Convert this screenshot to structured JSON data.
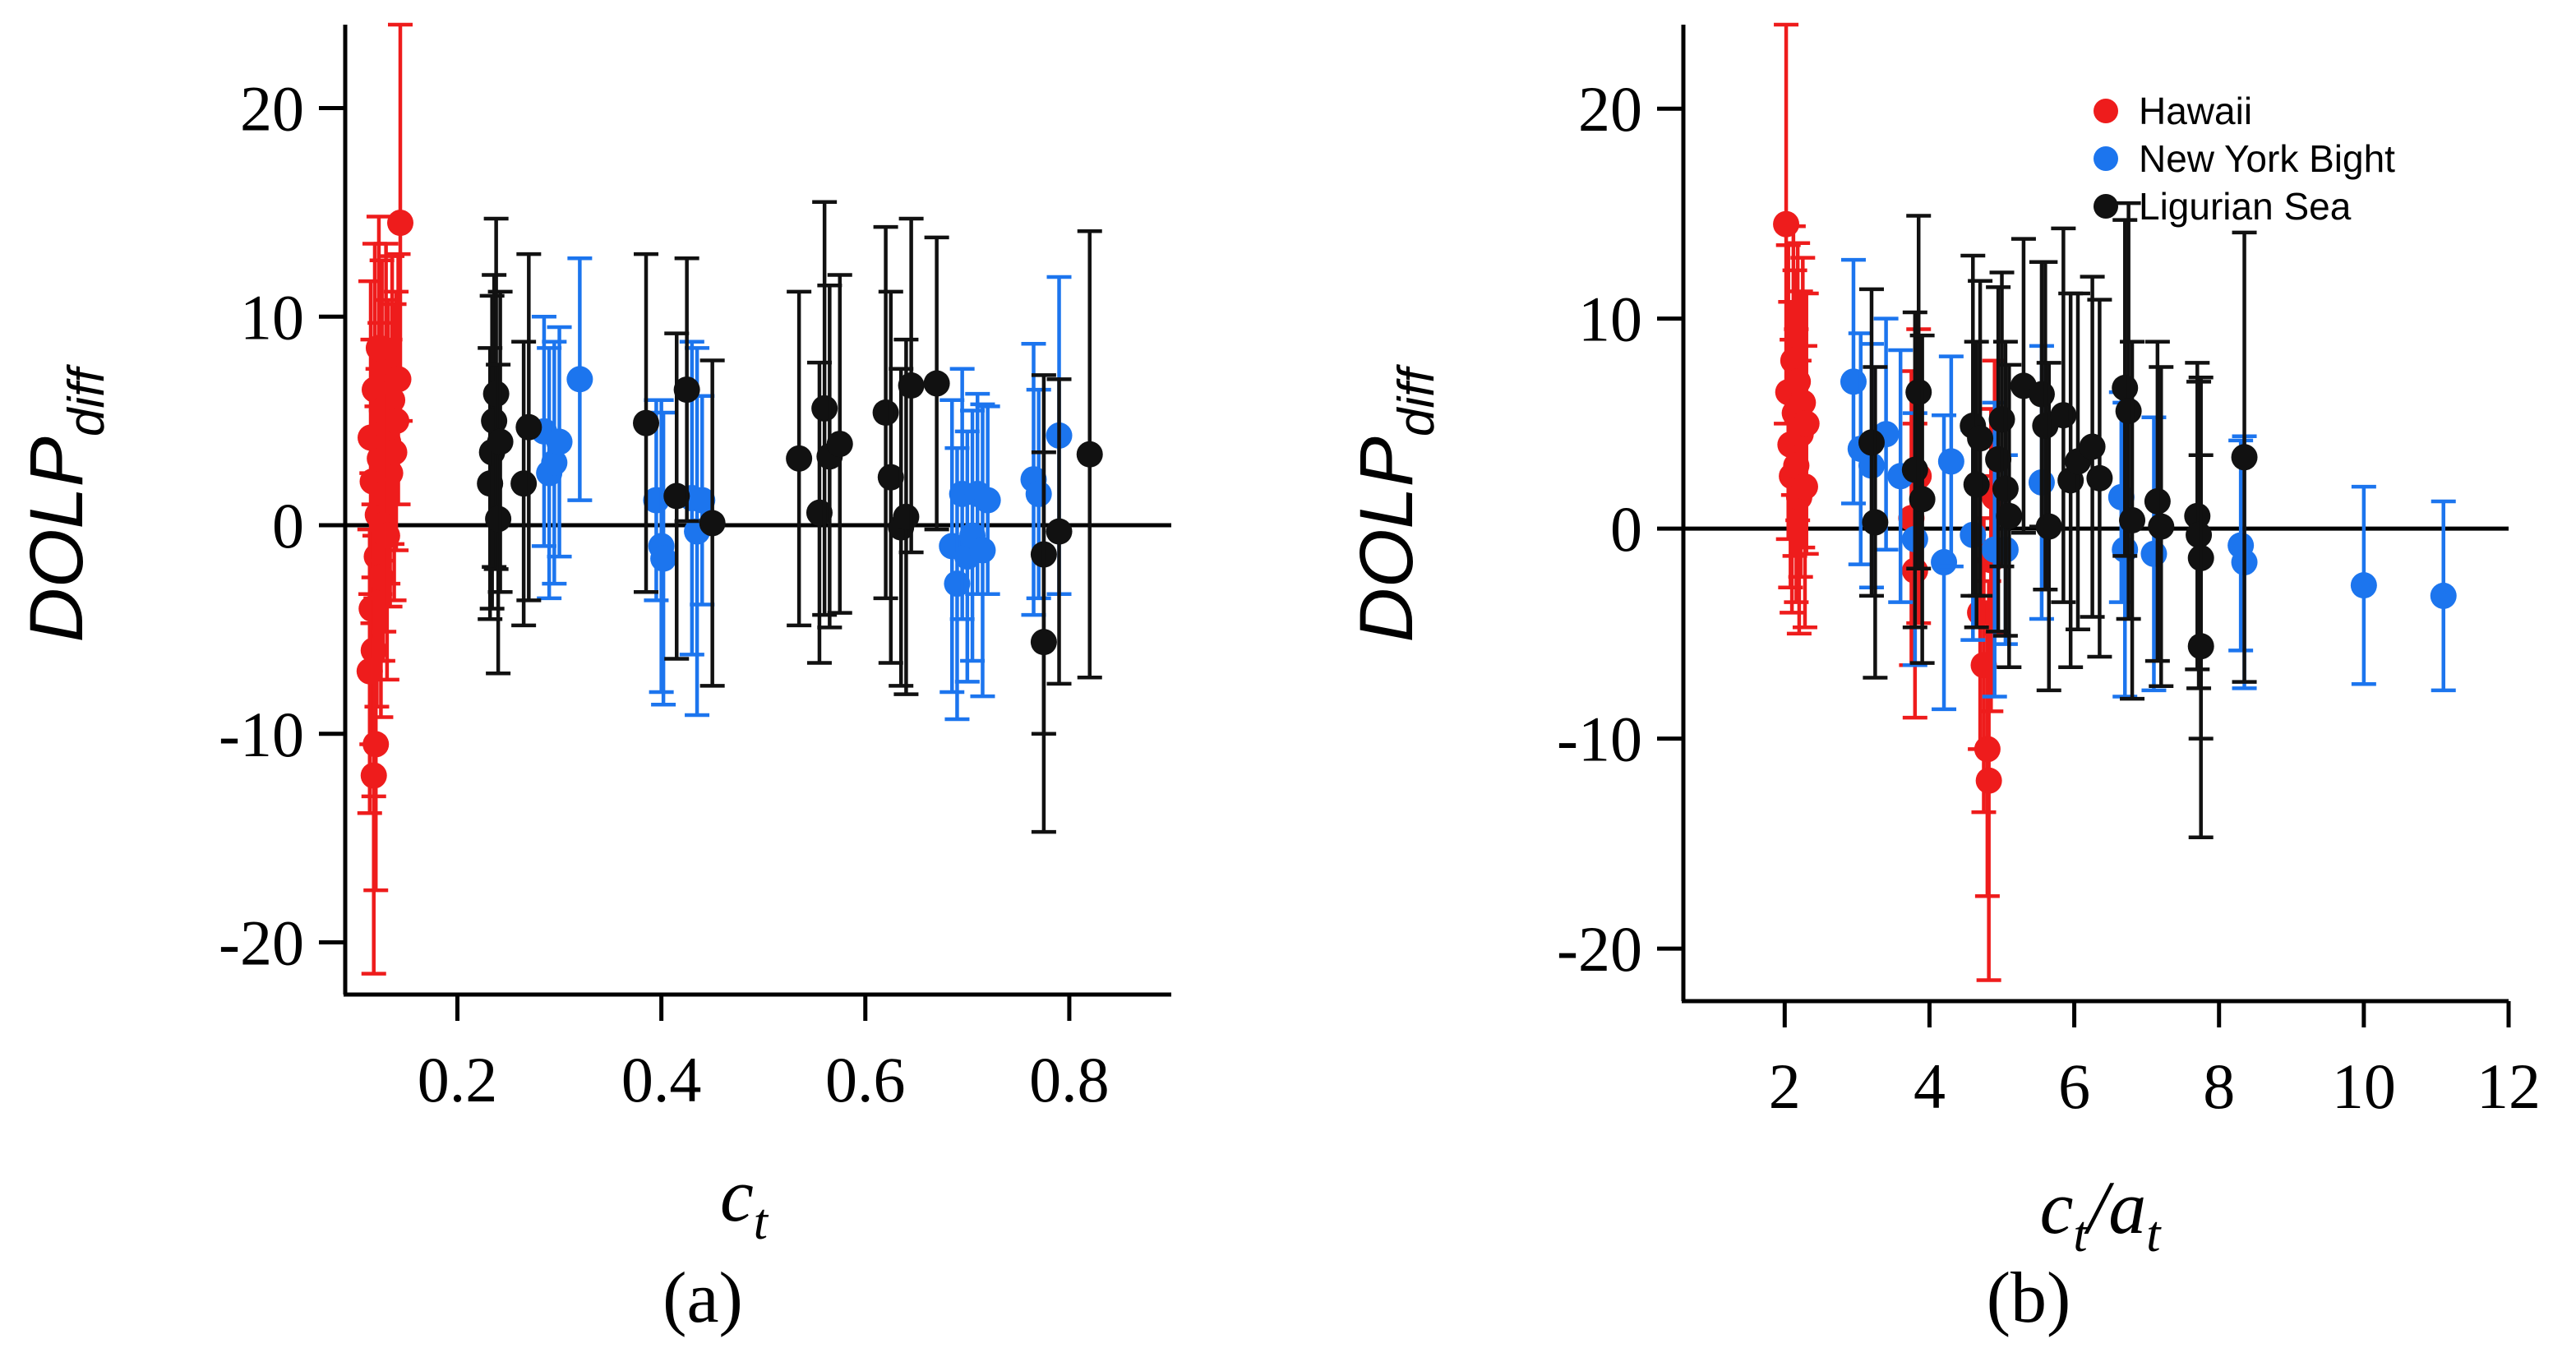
{
  "colors": {
    "hawaii": "#ee1c1c",
    "new_york_bight": "#1c75ee",
    "ligurian_sea": "#111111",
    "axis": "#000000"
  },
  "legend": {
    "entries": [
      {
        "name": "Hawaii",
        "color": "#ee1c1c"
      },
      {
        "name": "New York Bight",
        "color": "#1c75ee"
      },
      {
        "name": "Ligurian Sea",
        "color": "#111111"
      }
    ]
  },
  "chart_data": [
    {
      "id": "a",
      "type": "scatter",
      "caption": "(a)",
      "xlabel": {
        "main": "c",
        "sub": "t"
      },
      "ylabel": {
        "main": "DOLP",
        "sub": "diff"
      },
      "xlim": [
        0.09,
        0.9
      ],
      "ylim": [
        -22.5,
        24
      ],
      "xticks": [
        0.2,
        0.4,
        0.6,
        0.8
      ],
      "xtick_labels": [
        "0.2",
        "0.4",
        "0.6",
        "0.8"
      ],
      "yticks": [
        -20,
        -10,
        0,
        10,
        20
      ],
      "ytick_labels": [
        "-20",
        "-10",
        "0",
        "10",
        "20"
      ],
      "zero_line": true,
      "series": [
        {
          "name": "Hawaii",
          "color": "#ee1c1c",
          "points": [
            {
              "x": 0.115,
              "y": 4.2,
              "err": 7.5
            },
            {
              "x": 0.117,
              "y": 2.1,
              "err": 6.8
            },
            {
              "x": 0.119,
              "y": 6.5,
              "err": 7.0
            },
            {
              "x": 0.121,
              "y": -1.5,
              "err": 7.2
            },
            {
              "x": 0.116,
              "y": -4.0,
              "err": 6.5
            },
            {
              "x": 0.118,
              "y": -6.0,
              "err": 7.0
            },
            {
              "x": 0.114,
              "y": -7.0,
              "err": 6.8
            },
            {
              "x": 0.12,
              "y": -10.5,
              "err": 7.0
            },
            {
              "x": 0.118,
              "y": -12.0,
              "err": 9.5
            },
            {
              "x": 0.122,
              "y": 0.5,
              "err": 7.0
            },
            {
              "x": 0.124,
              "y": 3.2,
              "err": 6.5
            },
            {
              "x": 0.126,
              "y": 5.5,
              "err": 7.2
            },
            {
              "x": 0.128,
              "y": 1.5,
              "err": 6.6
            },
            {
              "x": 0.13,
              "y": 7.5,
              "err": 6.0
            },
            {
              "x": 0.132,
              "y": 4.0,
              "err": 6.8
            },
            {
              "x": 0.134,
              "y": 2.5,
              "err": 6.4
            },
            {
              "x": 0.136,
              "y": 6.0,
              "err": 6.9
            },
            {
              "x": 0.138,
              "y": 3.5,
              "err": 7.1
            },
            {
              "x": 0.14,
              "y": 5.0,
              "err": 6.2
            },
            {
              "x": 0.142,
              "y": 7.0,
              "err": 6.0
            },
            {
              "x": 0.144,
              "y": 14.5,
              "err": 9.5
            },
            {
              "x": 0.125,
              "y": -2.5,
              "err": 6.7
            },
            {
              "x": 0.127,
              "y": 0.0,
              "err": 6.5
            },
            {
              "x": 0.123,
              "y": 8.5,
              "err": 6.3
            },
            {
              "x": 0.131,
              "y": -0.5,
              "err": 6.9
            }
          ]
        },
        {
          "name": "New York Bight",
          "color": "#1c75ee",
          "points": [
            {
              "x": 0.285,
              "y": 4.5,
              "err": 5.5
            },
            {
              "x": 0.29,
              "y": 2.5,
              "err": 6.0
            },
            {
              "x": 0.295,
              "y": 3.0,
              "err": 5.8
            },
            {
              "x": 0.3,
              "y": 4.0,
              "err": 5.5
            },
            {
              "x": 0.32,
              "y": 7.0,
              "err": 5.8
            },
            {
              "x": 0.395,
              "y": 1.2,
              "err": 4.8
            },
            {
              "x": 0.4,
              "y": -1.0,
              "err": 7.0
            },
            {
              "x": 0.402,
              "y": -1.6,
              "err": 7.0
            },
            {
              "x": 0.43,
              "y": 1.3,
              "err": 7.5
            },
            {
              "x": 0.435,
              "y": -0.3,
              "err": 8.8
            },
            {
              "x": 0.44,
              "y": 1.2,
              "err": 5.0
            },
            {
              "x": 0.685,
              "y": -1.0,
              "err": 7.0
            },
            {
              "x": 0.69,
              "y": -2.8,
              "err": 6.5
            },
            {
              "x": 0.695,
              "y": 1.5,
              "err": 6.0
            },
            {
              "x": 0.7,
              "y": -1.5,
              "err": 6.0
            },
            {
              "x": 0.705,
              "y": -0.5,
              "err": 6.0
            },
            {
              "x": 0.71,
              "y": 1.5,
              "err": 4.8
            },
            {
              "x": 0.715,
              "y": -1.2,
              "err": 7.0
            },
            {
              "x": 0.72,
              "y": 1.2,
              "err": 4.5
            },
            {
              "x": 0.765,
              "y": 2.2,
              "err": 6.5
            },
            {
              "x": 0.77,
              "y": 1.5,
              "err": 5.0
            },
            {
              "x": 0.79,
              "y": 4.3,
              "err": 7.6
            }
          ]
        },
        {
          "name": "Ligurian Sea",
          "color": "#111111",
          "points": [
            {
              "x": 0.232,
              "y": 2.0,
              "err": 6.5
            },
            {
              "x": 0.234,
              "y": 3.5,
              "err": 7.5
            },
            {
              "x": 0.236,
              "y": 5.0,
              "err": 7.0
            },
            {
              "x": 0.238,
              "y": 6.3,
              "err": 8.4
            },
            {
              "x": 0.24,
              "y": 0.3,
              "err": 7.4
            },
            {
              "x": 0.242,
              "y": 4.0,
              "err": 7.2
            },
            {
              "x": 0.265,
              "y": 2.0,
              "err": 6.8
            },
            {
              "x": 0.27,
              "y": 4.7,
              "err": 8.3
            },
            {
              "x": 0.385,
              "y": 4.9,
              "err": 8.1
            },
            {
              "x": 0.415,
              "y": 1.4,
              "err": 7.8
            },
            {
              "x": 0.425,
              "y": 6.5,
              "err": 6.3
            },
            {
              "x": 0.45,
              "y": 0.1,
              "err": 7.8
            },
            {
              "x": 0.535,
              "y": 3.2,
              "err": 8.0
            },
            {
              "x": 0.555,
              "y": 0.6,
              "err": 7.2
            },
            {
              "x": 0.56,
              "y": 5.6,
              "err": 9.9
            },
            {
              "x": 0.565,
              "y": 3.3,
              "err": 8.2
            },
            {
              "x": 0.575,
              "y": 3.9,
              "err": 8.1
            },
            {
              "x": 0.62,
              "y": 5.4,
              "err": 8.9
            },
            {
              "x": 0.625,
              "y": 2.3,
              "err": 8.9
            },
            {
              "x": 0.635,
              "y": -0.1,
              "err": 7.6
            },
            {
              "x": 0.64,
              "y": 0.4,
              "err": 8.5
            },
            {
              "x": 0.645,
              "y": 6.7,
              "err": 8.0
            },
            {
              "x": 0.67,
              "y": 6.8,
              "err": 7.0
            },
            {
              "x": 0.775,
              "y": -1.4,
              "err": 8.6
            },
            {
              "x": 0.775,
              "y": -5.6,
              "err": 9.1
            },
            {
              "x": 0.79,
              "y": -0.3,
              "err": 7.3
            },
            {
              "x": 0.82,
              "y": 3.4,
              "err": 10.7
            }
          ]
        }
      ]
    },
    {
      "id": "b",
      "type": "scatter",
      "caption": "(b)",
      "xlabel": {
        "main": "c",
        "sub": "t",
        "sep": "/",
        "main2": "a",
        "sub2": "t"
      },
      "ylabel": {
        "main": "DOLP",
        "sub": "diff"
      },
      "xlim": [
        0.6,
        12
      ],
      "ylim": [
        -22.5,
        24
      ],
      "xticks": [
        2,
        4,
        6,
        8,
        10,
        12
      ],
      "xtick_labels": [
        "2",
        "4",
        "6",
        "8",
        "10",
        "12"
      ],
      "yticks": [
        -20,
        -10,
        0,
        10,
        20
      ],
      "ytick_labels": [
        "-20",
        "-10",
        "0",
        "10",
        "20"
      ],
      "zero_line": true,
      "legend_position": "top-right",
      "series": [
        {
          "name": "Hawaii",
          "color": "#ee1c1c",
          "points": [
            {
              "x": 2.02,
              "y": 14.5,
              "err": 9.5
            },
            {
              "x": 2.05,
              "y": 6.5,
              "err": 7.0
            },
            {
              "x": 2.08,
              "y": 4.0,
              "err": 6.8
            },
            {
              "x": 2.1,
              "y": 2.5,
              "err": 6.5
            },
            {
              "x": 2.12,
              "y": 8.0,
              "err": 6.4
            },
            {
              "x": 2.14,
              "y": 5.5,
              "err": 6.8
            },
            {
              "x": 2.16,
              "y": 3.0,
              "err": 6.5
            },
            {
              "x": 2.18,
              "y": 7.0,
              "err": 6.6
            },
            {
              "x": 2.2,
              "y": 1.5,
              "err": 6.5
            },
            {
              "x": 2.22,
              "y": 4.5,
              "err": 6.8
            },
            {
              "x": 2.25,
              "y": 6.0,
              "err": 6.9
            },
            {
              "x": 2.28,
              "y": 2.0,
              "err": 6.7
            },
            {
              "x": 2.3,
              "y": 5.0,
              "err": 6.2
            },
            {
              "x": 3.75,
              "y": 0.5,
              "err": 7.0
            },
            {
              "x": 3.8,
              "y": -2.0,
              "err": 7.0
            },
            {
              "x": 3.85,
              "y": 2.5,
              "err": 7.0
            },
            {
              "x": 4.7,
              "y": -4.0,
              "err": 6.5
            },
            {
              "x": 4.75,
              "y": -6.5,
              "err": 7.0
            },
            {
              "x": 4.8,
              "y": -10.5,
              "err": 7.0
            },
            {
              "x": 4.82,
              "y": -12.0,
              "err": 9.5
            },
            {
              "x": 4.85,
              "y": -1.5,
              "err": 7.2
            },
            {
              "x": 4.9,
              "y": 1.5,
              "err": 6.5
            }
          ]
        },
        {
          "name": "New York Bight",
          "color": "#1c75ee",
          "points": [
            {
              "x": 2.95,
              "y": 7.0,
              "err": 5.8
            },
            {
              "x": 3.05,
              "y": 3.8,
              "err": 5.5
            },
            {
              "x": 3.2,
              "y": 3.0,
              "err": 5.8
            },
            {
              "x": 3.4,
              "y": 4.5,
              "err": 5.5
            },
            {
              "x": 3.6,
              "y": 2.5,
              "err": 6.0
            },
            {
              "x": 3.8,
              "y": -0.5,
              "err": 6.0
            },
            {
              "x": 4.2,
              "y": -1.6,
              "err": 7.0
            },
            {
              "x": 4.3,
              "y": 3.2,
              "err": 5.0
            },
            {
              "x": 4.6,
              "y": -0.3,
              "err": 5.0
            },
            {
              "x": 4.9,
              "y": -1.0,
              "err": 7.0
            },
            {
              "x": 5.05,
              "y": -1.0,
              "err": 4.5
            },
            {
              "x": 5.55,
              "y": 2.2,
              "err": 6.5
            },
            {
              "x": 6.65,
              "y": 1.5,
              "err": 5.0
            },
            {
              "x": 6.7,
              "y": -1.0,
              "err": 7.0
            },
            {
              "x": 7.1,
              "y": -1.2,
              "err": 6.5
            },
            {
              "x": 8.3,
              "y": -0.8,
              "err": 5.0
            },
            {
              "x": 8.35,
              "y": -1.6,
              "err": 6.0
            },
            {
              "x": 10.0,
              "y": -2.7,
              "err": 4.7
            },
            {
              "x": 11.1,
              "y": -3.2,
              "err": 4.5
            }
          ]
        },
        {
          "name": "Ligurian Sea",
          "color": "#111111",
          "points": [
            {
              "x": 3.2,
              "y": 4.1,
              "err": 7.3
            },
            {
              "x": 3.25,
              "y": 0.3,
              "err": 7.4
            },
            {
              "x": 3.8,
              "y": 2.8,
              "err": 7.5
            },
            {
              "x": 3.85,
              "y": 6.5,
              "err": 8.4
            },
            {
              "x": 3.9,
              "y": 1.4,
              "err": 7.8
            },
            {
              "x": 4.6,
              "y": 4.9,
              "err": 8.1
            },
            {
              "x": 4.65,
              "y": 2.1,
              "err": 6.8
            },
            {
              "x": 4.7,
              "y": 4.3,
              "err": 7.5
            },
            {
              "x": 4.95,
              "y": 3.3,
              "err": 8.2
            },
            {
              "x": 5.0,
              "y": 5.2,
              "err": 7.0
            },
            {
              "x": 5.05,
              "y": 1.9,
              "err": 7.0
            },
            {
              "x": 5.1,
              "y": 0.6,
              "err": 7.2
            },
            {
              "x": 5.3,
              "y": 6.8,
              "err": 7.0
            },
            {
              "x": 5.55,
              "y": 6.4,
              "err": 6.3
            },
            {
              "x": 5.6,
              "y": 4.9,
              "err": 7.8
            },
            {
              "x": 5.65,
              "y": 0.1,
              "err": 7.8
            },
            {
              "x": 5.85,
              "y": 5.4,
              "err": 8.9
            },
            {
              "x": 5.95,
              "y": 2.3,
              "err": 8.9
            },
            {
              "x": 6.05,
              "y": 3.2,
              "err": 8.0
            },
            {
              "x": 6.25,
              "y": 3.9,
              "err": 8.1
            },
            {
              "x": 6.35,
              "y": 2.4,
              "err": 8.5
            },
            {
              "x": 6.7,
              "y": 6.7,
              "err": 8.0
            },
            {
              "x": 6.75,
              "y": 5.6,
              "err": 9.9
            },
            {
              "x": 6.8,
              "y": 0.4,
              "err": 8.5
            },
            {
              "x": 7.15,
              "y": 1.3,
              "err": 7.6
            },
            {
              "x": 7.2,
              "y": 0.1,
              "err": 7.6
            },
            {
              "x": 7.7,
              "y": 0.6,
              "err": 7.3
            },
            {
              "x": 7.72,
              "y": -0.3,
              "err": 7.3
            },
            {
              "x": 7.75,
              "y": -1.4,
              "err": 8.6
            },
            {
              "x": 7.75,
              "y": -5.6,
              "err": 9.1
            },
            {
              "x": 8.35,
              "y": 3.4,
              "err": 10.7
            }
          ]
        }
      ]
    }
  ]
}
